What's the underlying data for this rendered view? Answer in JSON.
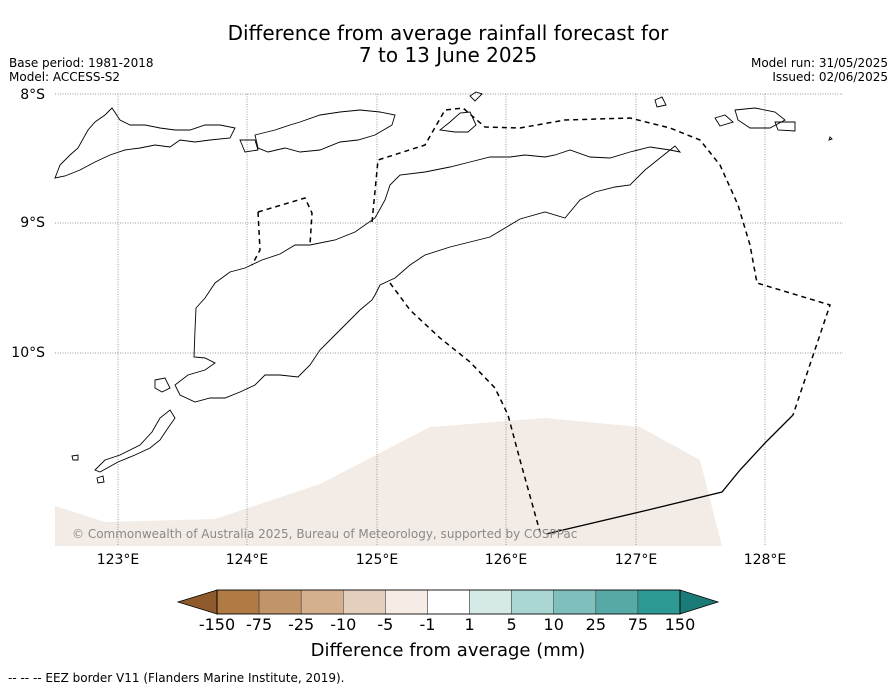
{
  "title": {
    "line1": "Difference from average rainfall forecast for",
    "line2": "7 to 13 June 2025"
  },
  "meta": {
    "base_period": "Base period: 1981-2018",
    "model": "Model: ACCESS-S2",
    "model_run": "Model run: 31/05/2025",
    "issued": "Issued: 02/06/2025"
  },
  "map": {
    "lat_labels": [
      "8°S",
      "9°S",
      "10°S"
    ],
    "lon_labels": [
      "123°E",
      "124°E",
      "125°E",
      "126°E",
      "127°E",
      "128°E"
    ],
    "copyright": "© Commonwealth of Australia 2025, Bureau of Meteorology, supported by COSPPac",
    "anomaly_fill_color": "#f3ece6",
    "gridlines": true
  },
  "colorbar": {
    "ticks": [
      "-150",
      "-75",
      "-25",
      "-10",
      "-5",
      "-1",
      "1",
      "5",
      "10",
      "25",
      "75",
      "150"
    ],
    "colors": [
      "#8f5a2b",
      "#b07a45",
      "#c29469",
      "#d4b08f",
      "#e4cfbc",
      "#f5ece6",
      "#ffffff",
      "#d5eae7",
      "#a9d6d2",
      "#7fc0bc",
      "#56a9a6",
      "#2e9893",
      "#1b7b77"
    ],
    "label": "Difference from average (mm)"
  },
  "legend": {
    "eez": "--  --  -- EEZ border V11 (Flanders Marine Institute, 2019)."
  }
}
